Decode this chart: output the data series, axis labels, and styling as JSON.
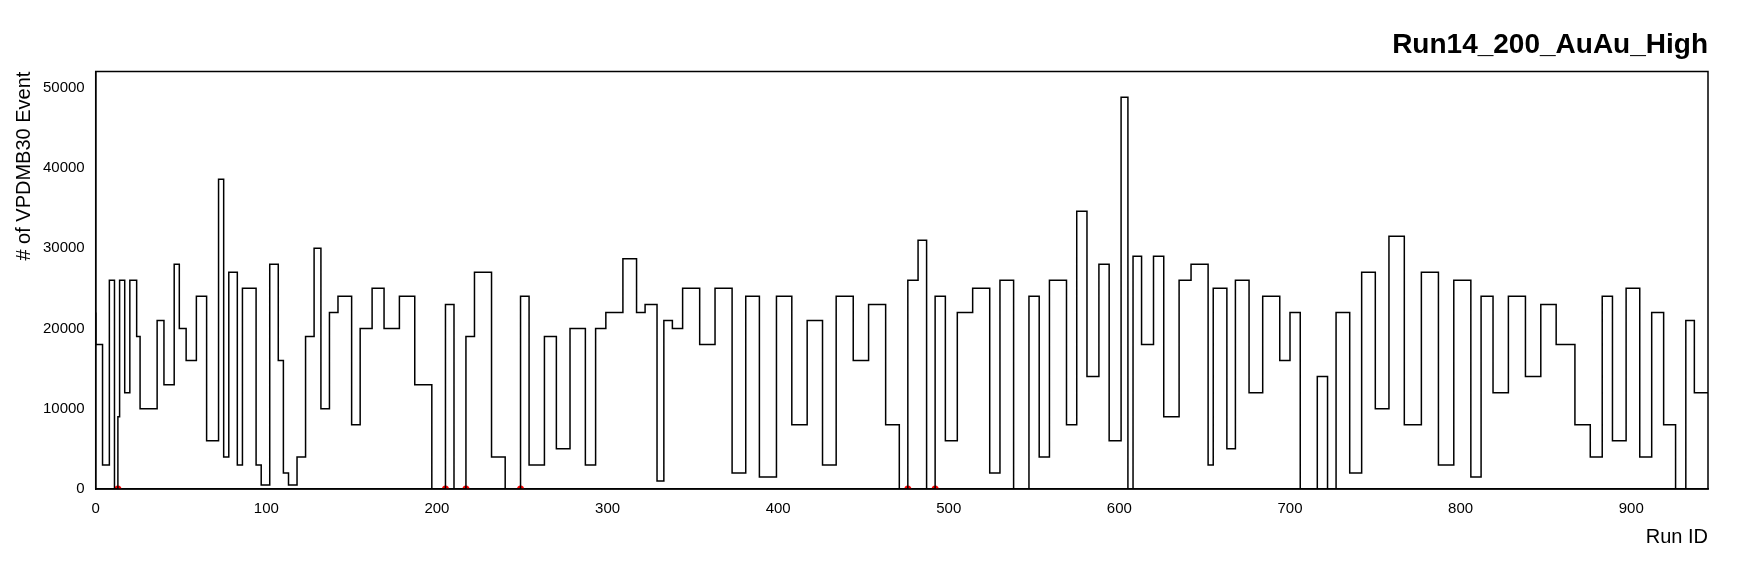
{
  "chart_data": {
    "type": "step",
    "title": "Run14_200_AuAu_High",
    "xlabel": "Run ID",
    "ylabel": "# of VPDMB30 Event",
    "xlim": [
      0,
      945
    ],
    "xticks": [
      0,
      100,
      200,
      300,
      400,
      500,
      600,
      700,
      800,
      900
    ],
    "ylim": [
      0,
      52000
    ],
    "yticks": [
      0,
      10000,
      20000,
      30000,
      40000,
      50000
    ],
    "grid": false,
    "legend": false,
    "series": [
      {
        "color": "#000000",
        "x": [
          0,
          4,
          8,
          11,
          13,
          14,
          17,
          20,
          24,
          26,
          36,
          40,
          46,
          49,
          53,
          59,
          65,
          72,
          75,
          78,
          83,
          86,
          94,
          97,
          102,
          107,
          110,
          113,
          118,
          123,
          128,
          132,
          137,
          142,
          150,
          155,
          162,
          169,
          178,
          187,
          197,
          205,
          210,
          217,
          222,
          232,
          240,
          249,
          254,
          263,
          270,
          278,
          287,
          293,
          299,
          309,
          317,
          322,
          329,
          333,
          338,
          344,
          354,
          363,
          373,
          381,
          389,
          399,
          408,
          417,
          426,
          434,
          444,
          453,
          463,
          471,
          476,
          482,
          487,
          492,
          498,
          505,
          514,
          524,
          530,
          538,
          547,
          553,
          559,
          569,
          575,
          581,
          588,
          594,
          601,
          605,
          608,
          613,
          620,
          626,
          635,
          642,
          652,
          655,
          663,
          668,
          676,
          684,
          694,
          700,
          706,
          716,
          722,
          727,
          735,
          742,
          750,
          758,
          767,
          777,
          787,
          796,
          806,
          812,
          819,
          828,
          838,
          847,
          856,
          867,
          876,
          883,
          889,
          897,
          905,
          912,
          919,
          926,
          932,
          937,
          945
        ],
        "values": [
          22000,
          18000,
          3000,
          26000,
          0,
          9000,
          26000,
          12000,
          26000,
          19000,
          10000,
          21000,
          13000,
          28000,
          20000,
          16000,
          24000,
          6000,
          38600,
          4000,
          27000,
          3000,
          25000,
          3000,
          500,
          28000,
          16000,
          2000,
          500,
          4000,
          19000,
          30000,
          10000,
          22000,
          24000,
          8000,
          20000,
          25000,
          20000,
          24000,
          13000,
          0,
          23000,
          0,
          19000,
          27000,
          4000,
          0,
          24000,
          3000,
          19000,
          5000,
          20000,
          3000,
          20000,
          22000,
          28700,
          22000,
          23000,
          1000,
          21000,
          20000,
          25000,
          18000,
          25000,
          2000,
          24000,
          1500,
          24000,
          8000,
          21000,
          3000,
          24000,
          16000,
          23000,
          8000,
          0,
          26000,
          31000,
          0,
          24000,
          6000,
          22000,
          25000,
          2000,
          26000,
          0,
          24000,
          4000,
          26000,
          8000,
          34600,
          14000,
          28000,
          6000,
          48800,
          0,
          29000,
          18000,
          29000,
          9000,
          26000,
          28000,
          3000,
          25000,
          5000,
          26000,
          12000,
          24000,
          16000,
          22000,
          0,
          14000,
          0,
          22000,
          2000,
          27000,
          10000,
          31500,
          8000,
          27000,
          3000,
          26000,
          1500,
          24000,
          12000,
          24000,
          14000,
          23000,
          18000,
          8000,
          4000,
          24000,
          6000,
          25000,
          4000,
          22000,
          8000,
          0,
          21000,
          12000
        ]
      },
      {
        "type": "scatter",
        "color": "#ff0000",
        "marker": "circle",
        "x": [
          13,
          205,
          217,
          249,
          476,
          492
        ],
        "values": [
          0,
          0,
          0,
          0,
          0,
          0
        ]
      }
    ]
  }
}
